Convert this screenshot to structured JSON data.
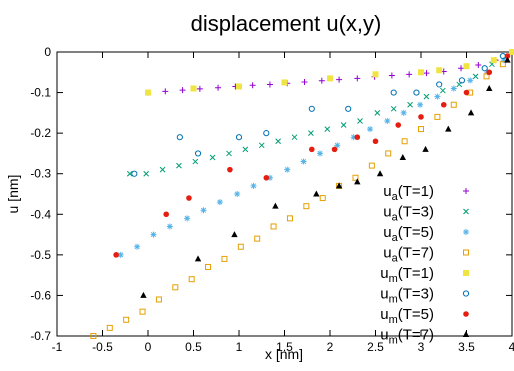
{
  "chart_data": {
    "type": "scatter",
    "title": "displacement u(x,y)",
    "xlabel": "x [nm]",
    "ylabel": "u [nm]",
    "xlim": [
      -1,
      4
    ],
    "ylim": [
      -0.7,
      0
    ],
    "xticks": [
      -1,
      -0.5,
      0,
      0.5,
      1,
      1.5,
      2,
      2.5,
      3,
      3.5,
      4
    ],
    "xtick_labels": [
      "-1",
      "-0.5",
      "0",
      "0.5",
      "1",
      "1.5",
      "2",
      "2.5",
      "3",
      "3.5",
      "4"
    ],
    "yticks": [
      0,
      -0.1,
      -0.2,
      -0.3,
      -0.4,
      -0.5,
      -0.6,
      -0.7
    ],
    "ytick_labels": [
      "0",
      "-0.1",
      "-0.2",
      "-0.3",
      "-0.4",
      "-0.5",
      "-0.6",
      "-0.7"
    ],
    "grid": false,
    "legend_position": "bottom-right",
    "series": [
      {
        "name": "u_a(T=1)",
        "base": "u",
        "sub": "a",
        "suffix": "(T=1)",
        "marker": "plus",
        "color": "#9400d3",
        "x": [
          0.0,
          0.19,
          0.38,
          0.57,
          0.77,
          0.96,
          1.15,
          1.34,
          1.53,
          1.72,
          1.91,
          2.1,
          2.3,
          2.49,
          2.68,
          2.87,
          3.06,
          3.25,
          3.44,
          3.63,
          3.82,
          4.0
        ],
        "y": [
          -0.1,
          -0.097,
          -0.094,
          -0.091,
          -0.088,
          -0.085,
          -0.082,
          -0.08,
          -0.077,
          -0.074,
          -0.071,
          -0.068,
          -0.065,
          -0.061,
          -0.058,
          -0.055,
          -0.052,
          -0.048,
          -0.04,
          -0.032,
          -0.02,
          0.0
        ]
      },
      {
        "name": "u_a(T=3)",
        "base": "u",
        "sub": "a",
        "suffix": "(T=3)",
        "marker": "x",
        "color": "#009e73",
        "x": [
          -0.2,
          -0.02,
          0.16,
          0.34,
          0.52,
          0.71,
          0.89,
          1.07,
          1.25,
          1.43,
          1.61,
          1.79,
          1.97,
          2.15,
          2.33,
          2.52,
          2.7,
          2.88,
          3.06,
          3.24,
          3.42,
          3.6,
          3.78,
          4.0
        ],
        "y": [
          -0.3,
          -0.3,
          -0.29,
          -0.28,
          -0.27,
          -0.26,
          -0.25,
          -0.24,
          -0.23,
          -0.22,
          -0.21,
          -0.2,
          -0.19,
          -0.18,
          -0.17,
          -0.15,
          -0.14,
          -0.13,
          -0.11,
          -0.095,
          -0.08,
          -0.06,
          -0.03,
          0.0
        ]
      },
      {
        "name": "u_a(T=5)",
        "base": "u",
        "sub": "a",
        "suffix": "(T=5)",
        "marker": "star",
        "color": "#56b4e9",
        "x": [
          -0.3,
          -0.12,
          0.06,
          0.24,
          0.43,
          0.61,
          0.79,
          0.98,
          1.16,
          1.34,
          1.53,
          1.71,
          1.89,
          2.08,
          2.26,
          2.44,
          2.63,
          2.81,
          2.99,
          3.18,
          3.36,
          3.54,
          3.73,
          3.91
        ],
        "y": [
          -0.5,
          -0.48,
          -0.45,
          -0.43,
          -0.41,
          -0.39,
          -0.37,
          -0.35,
          -0.33,
          -0.31,
          -0.29,
          -0.27,
          -0.25,
          -0.23,
          -0.21,
          -0.19,
          -0.17,
          -0.15,
          -0.13,
          -0.11,
          -0.09,
          -0.07,
          -0.05,
          -0.02
        ]
      },
      {
        "name": "u_a(T=7)",
        "base": "u",
        "sub": "a",
        "suffix": "(T=7)",
        "marker": "square",
        "color": "#e69f00",
        "x": [
          -0.6,
          -0.42,
          -0.24,
          -0.06,
          0.12,
          0.3,
          0.48,
          0.66,
          0.84,
          1.02,
          1.2,
          1.38,
          1.56,
          1.74,
          1.92,
          2.1,
          2.28,
          2.46,
          2.64,
          2.82,
          3.0,
          3.18,
          3.36,
          3.54,
          3.72,
          3.9
        ],
        "y": [
          -0.7,
          -0.68,
          -0.66,
          -0.64,
          -0.61,
          -0.58,
          -0.56,
          -0.53,
          -0.51,
          -0.48,
          -0.46,
          -0.43,
          -0.41,
          -0.38,
          -0.36,
          -0.33,
          -0.31,
          -0.28,
          -0.25,
          -0.22,
          -0.19,
          -0.16,
          -0.13,
          -0.1,
          -0.06,
          -0.03
        ]
      },
      {
        "name": "u_m(T=1)",
        "base": "u",
        "sub": "m",
        "suffix": "(T=1)",
        "marker": "filled-square",
        "color": "#f0e442",
        "x": [
          0.0,
          0.5,
          1.0,
          1.5,
          2.0,
          2.5,
          3.0,
          3.2,
          3.5,
          3.8,
          4.0
        ],
        "y": [
          -0.1,
          -0.09,
          -0.085,
          -0.075,
          -0.065,
          -0.055,
          -0.05,
          -0.045,
          -0.035,
          -0.02,
          0.0
        ]
      },
      {
        "name": "u_m(T=3)",
        "base": "u",
        "sub": "m",
        "suffix": "(T=3)",
        "marker": "circle",
        "color": "#0072b2",
        "x": [
          -0.15,
          0.35,
          0.55,
          1.0,
          1.3,
          1.8,
          2.2,
          2.7,
          2.95,
          3.2,
          3.45,
          3.7,
          3.9
        ],
        "y": [
          -0.3,
          -0.21,
          -0.25,
          -0.21,
          -0.2,
          -0.14,
          -0.14,
          -0.1,
          -0.1,
          -0.08,
          -0.07,
          -0.04,
          -0.01
        ]
      },
      {
        "name": "u_m(T=5)",
        "base": "u",
        "sub": "m",
        "suffix": "(T=5)",
        "marker": "filled-circle",
        "color": "#e51e10",
        "x": [
          -0.35,
          0.2,
          0.45,
          0.9,
          1.3,
          1.8,
          2.05,
          2.3,
          2.5,
          2.75,
          3.0,
          3.25,
          3.5,
          3.75,
          3.95
        ],
        "y": [
          -0.5,
          -0.4,
          -0.36,
          -0.29,
          -0.31,
          -0.24,
          -0.24,
          -0.21,
          -0.22,
          -0.18,
          -0.16,
          -0.13,
          -0.1,
          -0.05,
          -0.01
        ]
      },
      {
        "name": "u_m(T=7)",
        "base": "u",
        "sub": "m",
        "suffix": "(T=7)",
        "marker": "triangle",
        "color": "#000000",
        "x": [
          -0.05,
          0.55,
          0.95,
          1.4,
          1.85,
          2.1,
          2.3,
          2.55,
          2.8,
          3.05,
          3.3,
          3.55,
          3.75,
          3.95
        ],
        "y": [
          -0.6,
          -0.51,
          -0.45,
          -0.38,
          -0.35,
          -0.33,
          -0.32,
          -0.3,
          -0.26,
          -0.24,
          -0.19,
          -0.15,
          -0.09,
          -0.02
        ]
      }
    ]
  }
}
